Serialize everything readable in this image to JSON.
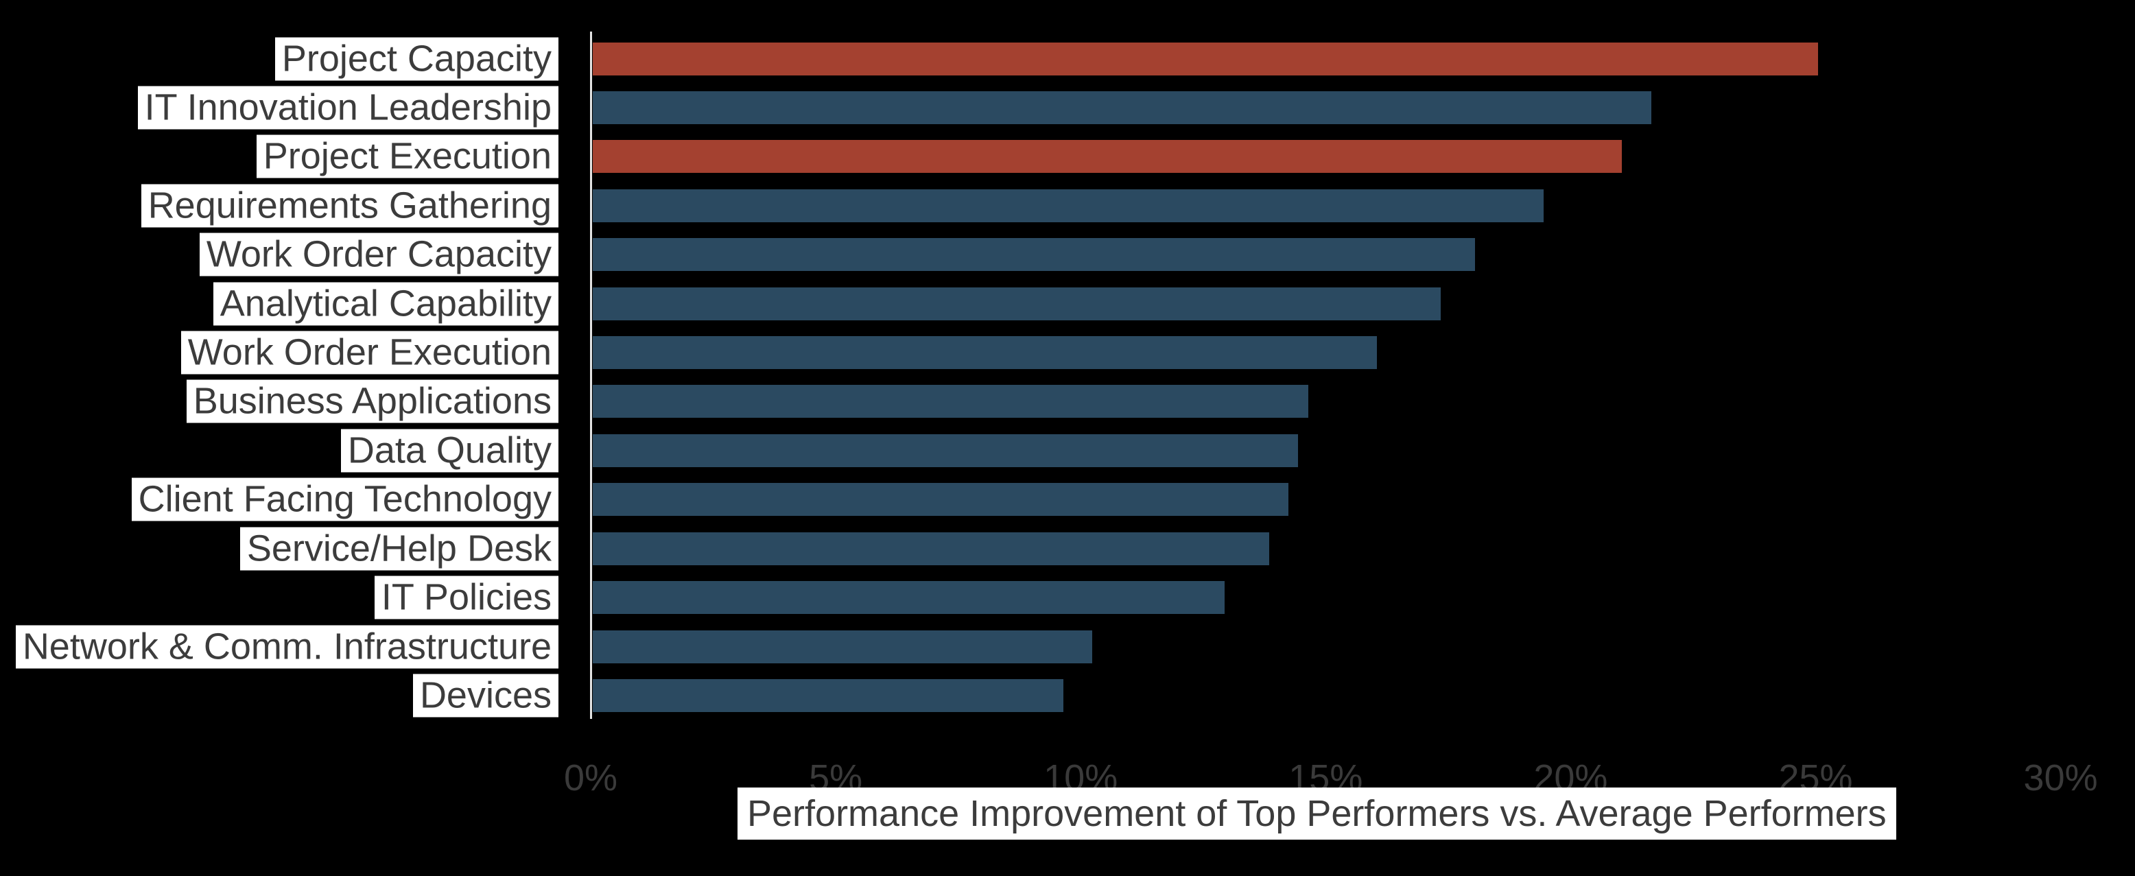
{
  "chart_data": {
    "type": "bar",
    "orientation": "horizontal",
    "title": "",
    "xlabel": "Performance Improvement of Top Performers vs. Average Performers",
    "ylabel": "",
    "categories": [
      "Project Capacity",
      "IT Innovation Leadership",
      "Project Execution",
      "Requirements Gathering",
      "Work Order Capacity",
      "Analytical Capability",
      "Work Order Execution",
      "Business Applications",
      "Data Quality",
      "Client Facing Technology",
      "Service/Help Desk",
      "IT Policies",
      "Network & Comm. Infrastructure",
      "Devices"
    ],
    "values": [
      25.0,
      21.6,
      21.0,
      19.4,
      18.0,
      17.3,
      16.0,
      14.6,
      14.4,
      14.2,
      13.8,
      12.9,
      10.2,
      9.6
    ],
    "value_unit": "%",
    "xlim": [
      0,
      30
    ],
    "x_ticks": {
      "labels": [
        "0%",
        "5%",
        "10%",
        "15%",
        "20%",
        "25%",
        "30%"
      ],
      "values": [
        0,
        5,
        10,
        15,
        20,
        25,
        30
      ]
    },
    "grid": false,
    "legend": "none",
    "highlight_indices": [
      0,
      2
    ],
    "colors": {
      "highlight_bar": "#a44130",
      "normal_bar": "#2b4a61",
      "background": "#000000",
      "axis_line": "#e3e3e3",
      "tick_text": "#3a3a3a",
      "label_text": "#3c3c3c",
      "label_background": "#ffffff"
    }
  }
}
